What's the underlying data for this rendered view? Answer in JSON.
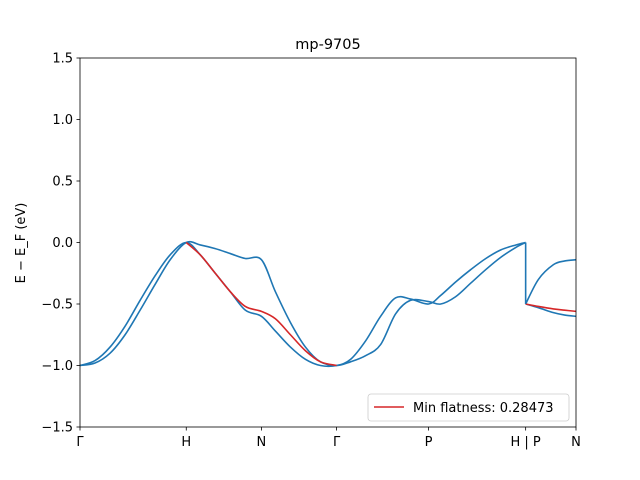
{
  "chart_data": {
    "type": "line",
    "title": "mp-9705",
    "xlabel": "",
    "ylabel": "E − E_F (eV)",
    "ylim": [
      -1.5,
      1.5
    ],
    "yticks": [
      -1.5,
      -1.0,
      -0.5,
      0.0,
      0.5,
      1.0,
      1.5
    ],
    "ytick_labels": [
      "−1.5",
      "−1.0",
      "−0.5",
      "0.0",
      "0.5",
      "1.0",
      "1.5"
    ],
    "xlim": [
      0,
      6.6
    ],
    "kpoints": [
      {
        "label": "Γ",
        "x": 0
      },
      {
        "label": "H",
        "x": 1.414
      },
      {
        "label": "N",
        "x": 2.414
      },
      {
        "label": "Γ",
        "x": 3.414
      },
      {
        "label": "P",
        "x": 4.638
      },
      {
        "label": "H | P",
        "x": 5.93
      },
      {
        "label": "N",
        "x": 6.6
      }
    ],
    "grid": false,
    "legend": {
      "position": "bottom-right",
      "entries": [
        {
          "label": "Min flatness: 0.28473",
          "color": "#d62728"
        }
      ]
    },
    "colors": {
      "band": "#1f77b4",
      "highlight": "#d62728"
    },
    "series": [
      {
        "color": "#1f77b4",
        "x": [
          0,
          0.2,
          0.4,
          0.6,
          0.8,
          1.0,
          1.2,
          1.414,
          1.6,
          1.8,
          2.0,
          2.2,
          2.414,
          2.6,
          2.8,
          3.0,
          3.2,
          3.414,
          3.6,
          3.8,
          4.0,
          4.2,
          4.4,
          4.638,
          4.8,
          5.0,
          5.2,
          5.4,
          5.6,
          5.8,
          5.93
        ],
        "y": [
          -1.0,
          -0.96,
          -0.85,
          -0.68,
          -0.47,
          -0.27,
          -0.1,
          0.0,
          -0.1,
          -0.25,
          -0.4,
          -0.55,
          -0.6,
          -0.72,
          -0.85,
          -0.95,
          -1.0,
          -1.0,
          -0.95,
          -0.8,
          -0.6,
          -0.45,
          -0.46,
          -0.5,
          -0.43,
          -0.32,
          -0.22,
          -0.13,
          -0.06,
          -0.02,
          0.0
        ]
      },
      {
        "color": "#1f77b4",
        "x": [
          0,
          0.2,
          0.4,
          0.6,
          0.8,
          1.0,
          1.2,
          1.414,
          1.6,
          1.8,
          2.0,
          2.2,
          2.414,
          2.6,
          2.8,
          3.0,
          3.2,
          3.414,
          3.6,
          3.8,
          4.0,
          4.2,
          4.4,
          4.638,
          4.8,
          5.0,
          5.2,
          5.4,
          5.6,
          5.8,
          5.93
        ],
        "y": [
          -1.0,
          -0.98,
          -0.9,
          -0.75,
          -0.55,
          -0.34,
          -0.14,
          0.0,
          -0.02,
          -0.05,
          -0.09,
          -0.13,
          -0.14,
          -0.4,
          -0.65,
          -0.85,
          -0.97,
          -1.0,
          -0.97,
          -0.92,
          -0.83,
          -0.58,
          -0.47,
          -0.48,
          -0.5,
          -0.44,
          -0.33,
          -0.22,
          -0.12,
          -0.04,
          0.0
        ]
      },
      {
        "color": "#d62728",
        "x": [
          1.414,
          1.6,
          1.8,
          2.0,
          2.2,
          2.414,
          2.6,
          2.8,
          3.0,
          3.2,
          3.414
        ],
        "y": [
          0.0,
          -0.1,
          -0.25,
          -0.4,
          -0.52,
          -0.56,
          -0.62,
          -0.75,
          -0.88,
          -0.97,
          -1.0
        ]
      },
      {
        "color": "#1f77b4",
        "x": [
          5.93,
          6.1,
          6.3,
          6.45,
          6.6
        ],
        "y": [
          -0.5,
          -0.3,
          -0.18,
          -0.15,
          -0.14
        ]
      },
      {
        "color": "#1f77b4",
        "x": [
          5.93,
          6.1,
          6.3,
          6.45,
          6.6
        ],
        "y": [
          -0.5,
          -0.53,
          -0.57,
          -0.59,
          -0.6
        ]
      },
      {
        "color": "#d62728",
        "x": [
          5.93,
          6.1,
          6.3,
          6.45,
          6.6
        ],
        "y": [
          -0.5,
          -0.52,
          -0.54,
          -0.55,
          -0.56
        ]
      }
    ]
  }
}
